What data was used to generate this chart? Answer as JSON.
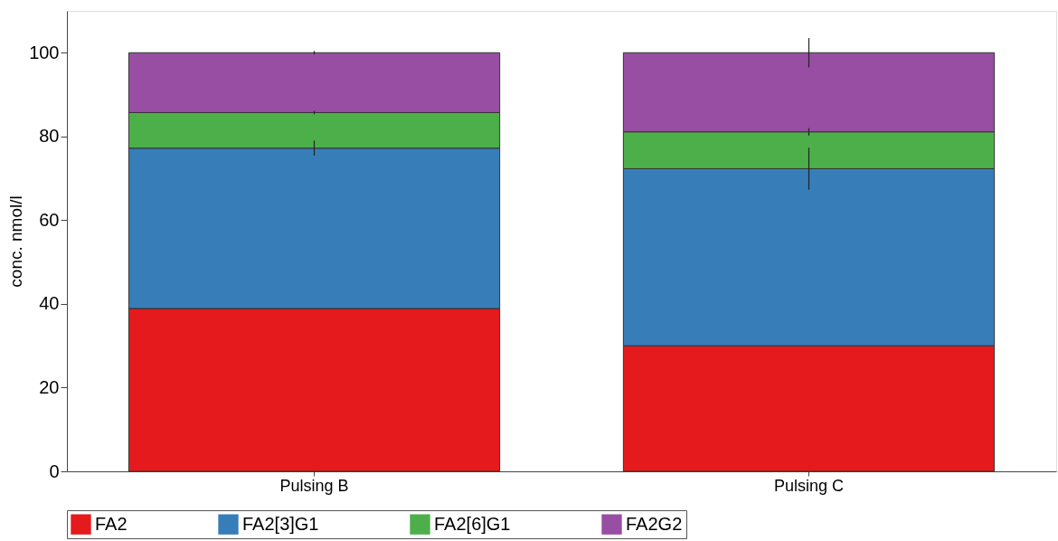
{
  "chart_data": {
    "type": "bar",
    "stacked": true,
    "ylabel": "conc. nmol/l",
    "categories": [
      "Pulsing B",
      "Pulsing C"
    ],
    "series": [
      {
        "name": "FA2",
        "color": "#e41a1c",
        "values": [
          38.9,
          30.0
        ]
      },
      {
        "name": "FA2[3]G1",
        "color": "#377eb8",
        "values": [
          38.3,
          42.3
        ],
        "errors": [
          1.8,
          5.0
        ]
      },
      {
        "name": "FA2[6]G1",
        "color": "#4daf4a",
        "values": [
          8.5,
          8.8
        ],
        "errors": [
          0.4,
          0.9
        ]
      },
      {
        "name": "FA2G2",
        "color": "#984ea3",
        "values": [
          14.3,
          18.9
        ],
        "errors": [
          0.4,
          3.5
        ]
      }
    ],
    "ylim": [
      0,
      110
    ],
    "yticks": [
      0,
      20,
      40,
      60,
      80,
      100
    ],
    "grid": false,
    "legend": "bottom"
  }
}
